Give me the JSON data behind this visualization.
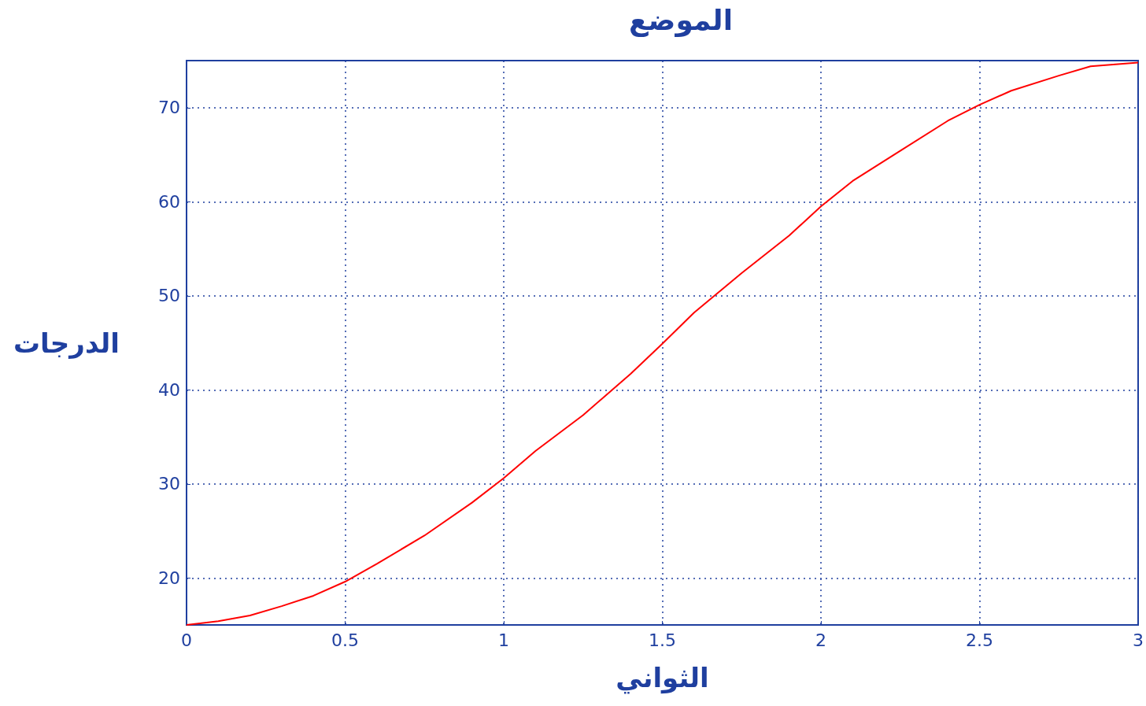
{
  "chart_data": {
    "type": "line",
    "title": "الموضع",
    "xlabel": "الثواني",
    "ylabel": "الدرجات",
    "x": [
      0,
      0.1,
      0.2,
      0.3,
      0.4,
      0.5,
      0.6,
      0.75,
      0.9,
      1.0,
      1.1,
      1.25,
      1.4,
      1.5,
      1.6,
      1.75,
      1.9,
      2.0,
      2.1,
      2.25,
      2.4,
      2.5,
      2.6,
      2.75,
      2.85,
      3.0
    ],
    "series": [
      {
        "color": "#ff0000",
        "values": [
          15,
          15.4,
          16,
          17,
          18.1,
          19.6,
          21.5,
          24.5,
          28,
          30.6,
          33.5,
          37.3,
          41.7,
          44.9,
          48.2,
          52.4,
          56.4,
          59.5,
          62.2,
          65.4,
          68.6,
          70.3,
          71.8,
          73.4,
          74.4,
          74.8
        ]
      }
    ],
    "xlim": [
      0,
      3
    ],
    "xticks": [
      0,
      0.5,
      1,
      1.5,
      2,
      2.5,
      3
    ],
    "ylim": [
      15,
      75
    ],
    "yticks": [
      20,
      30,
      40,
      50,
      60,
      70
    ],
    "grid": true,
    "marker": "none",
    "line_style": "solid"
  }
}
